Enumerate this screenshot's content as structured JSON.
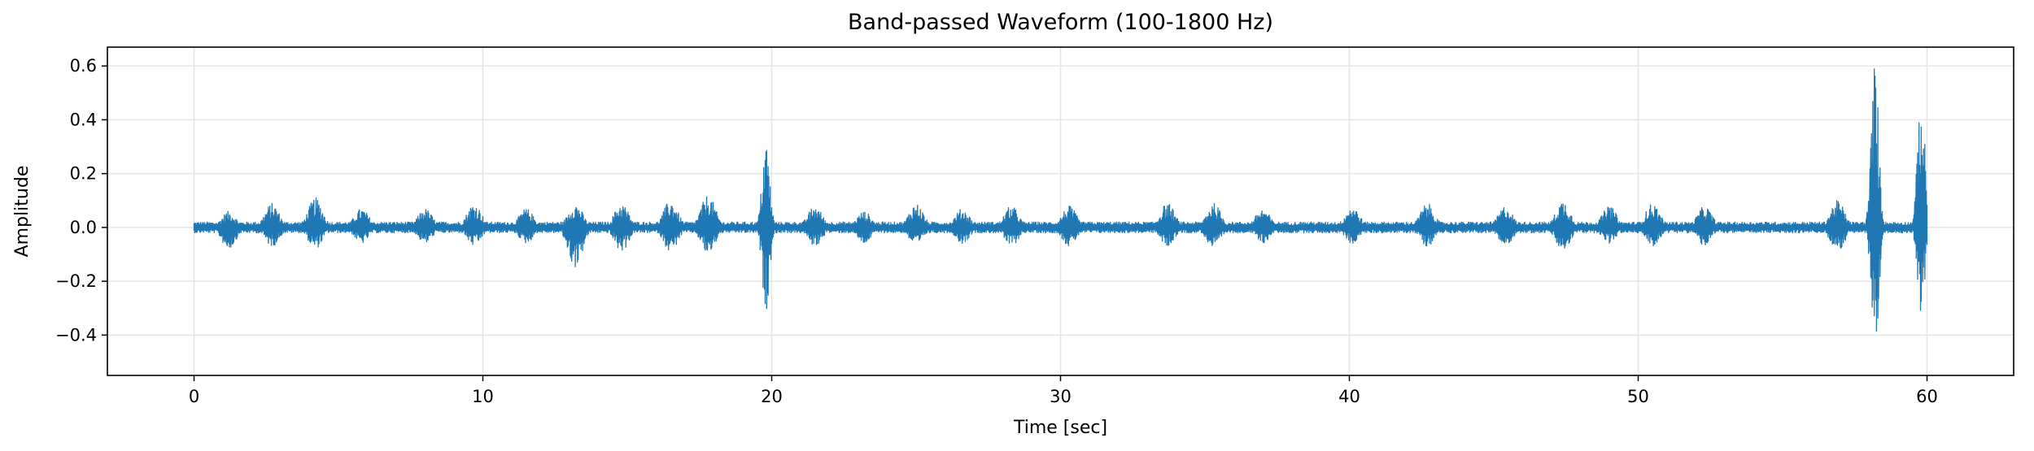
{
  "chart_data": {
    "type": "line",
    "title": "Band-passed Waveform (100-1800 Hz)",
    "xlabel": "Time [sec]",
    "ylabel": "Amplitude",
    "xlim": [
      -3,
      63
    ],
    "ylim": [
      -0.55,
      0.67
    ],
    "xticks": [
      0,
      10,
      20,
      30,
      40,
      50,
      60
    ],
    "yticks": [
      -0.4,
      -0.2,
      0.0,
      0.2,
      0.4,
      0.6
    ],
    "ytick_labels": [
      "−0.4",
      "−0.2",
      "0.0",
      "0.2",
      "0.4",
      "0.6"
    ],
    "grid": true,
    "line_color": "#1f77b4",
    "series": [
      {
        "t_range": [
          0,
          60
        ],
        "baseline_amplitude": 0.02,
        "bursts": [
          {
            "t": 1.2,
            "max": 0.06,
            "min": -0.08
          },
          {
            "t": 2.7,
            "max": 0.09,
            "min": -0.07
          },
          {
            "t": 4.2,
            "max": 0.11,
            "min": -0.08
          },
          {
            "t": 5.8,
            "max": 0.07,
            "min": -0.06
          },
          {
            "t": 8.0,
            "max": 0.07,
            "min": -0.06
          },
          {
            "t": 9.7,
            "max": 0.09,
            "min": -0.07
          },
          {
            "t": 11.5,
            "max": 0.07,
            "min": -0.06
          },
          {
            "t": 13.2,
            "max": 0.09,
            "min": -0.15
          },
          {
            "t": 14.8,
            "max": 0.09,
            "min": -0.09
          },
          {
            "t": 16.5,
            "max": 0.1,
            "min": -0.09
          },
          {
            "t": 17.8,
            "max": 0.12,
            "min": -0.1
          },
          {
            "t": 19.8,
            "max": 0.33,
            "min": -0.31
          },
          {
            "t": 21.5,
            "max": 0.08,
            "min": -0.07
          },
          {
            "t": 23.2,
            "max": 0.06,
            "min": -0.06
          },
          {
            "t": 25.0,
            "max": 0.09,
            "min": -0.07
          },
          {
            "t": 26.6,
            "max": 0.07,
            "min": -0.06
          },
          {
            "t": 28.3,
            "max": 0.08,
            "min": -0.07
          },
          {
            "t": 30.3,
            "max": 0.08,
            "min": -0.07
          },
          {
            "t": 33.7,
            "max": 0.09,
            "min": -0.07
          },
          {
            "t": 35.3,
            "max": 0.09,
            "min": -0.08
          },
          {
            "t": 37.0,
            "max": 0.07,
            "min": -0.06
          },
          {
            "t": 40.1,
            "max": 0.08,
            "min": -0.06
          },
          {
            "t": 42.7,
            "max": 0.09,
            "min": -0.07
          },
          {
            "t": 45.4,
            "max": 0.08,
            "min": -0.07
          },
          {
            "t": 47.4,
            "max": 0.1,
            "min": -0.09
          },
          {
            "t": 49.0,
            "max": 0.08,
            "min": -0.06
          },
          {
            "t": 50.5,
            "max": 0.09,
            "min": -0.07
          },
          {
            "t": 52.3,
            "max": 0.08,
            "min": -0.07
          },
          {
            "t": 56.9,
            "max": 0.1,
            "min": -0.09
          },
          {
            "t": 58.2,
            "max": 0.62,
            "min": -0.49
          },
          {
            "t": 59.8,
            "max": 0.51,
            "min": -0.32
          }
        ]
      }
    ]
  }
}
